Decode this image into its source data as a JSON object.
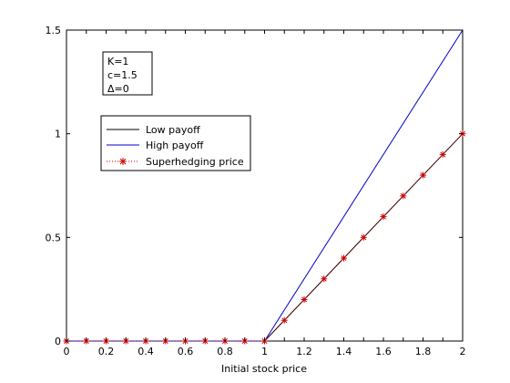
{
  "chart_data": {
    "type": "line",
    "title": "",
    "xlabel": "Initial stock price",
    "ylabel": "",
    "xlim": [
      0,
      2
    ],
    "ylim": [
      0,
      1.5
    ],
    "xticks": [
      "0",
      "0.2",
      "0.4",
      "0.6",
      "0.8",
      "1",
      "1.2",
      "1.4",
      "1.6",
      "1.8",
      "2"
    ],
    "yticks": [
      "0",
      "0.5",
      "1",
      "1.5"
    ],
    "annotation": [
      "K=1",
      "c=1.5",
      "Δ=0"
    ],
    "legend_position": "upper-left",
    "series": [
      {
        "name": "Low payoff",
        "color": "#000000",
        "style": "solid",
        "x": [
          0,
          1,
          2
        ],
        "y": [
          0,
          0,
          1
        ]
      },
      {
        "name": "High payoff",
        "color": "#0000cc",
        "style": "solid",
        "x": [
          0,
          1,
          2
        ],
        "y": [
          0,
          0,
          1.5
        ]
      },
      {
        "name": "Superhedging price",
        "color": "#cc0000",
        "style": "dotted-star",
        "x": [
          0,
          0.1,
          0.2,
          0.3,
          0.4,
          0.5,
          0.6,
          0.7,
          0.8,
          0.9,
          1,
          1.1,
          1.2,
          1.3,
          1.4,
          1.5,
          1.6,
          1.7,
          1.8,
          1.9,
          2
        ],
        "y": [
          0,
          0,
          0,
          0,
          0,
          0,
          0,
          0,
          0,
          0,
          0,
          0.1,
          0.2,
          0.3,
          0.4,
          0.5,
          0.6,
          0.7,
          0.8,
          0.9,
          1
        ]
      }
    ]
  }
}
